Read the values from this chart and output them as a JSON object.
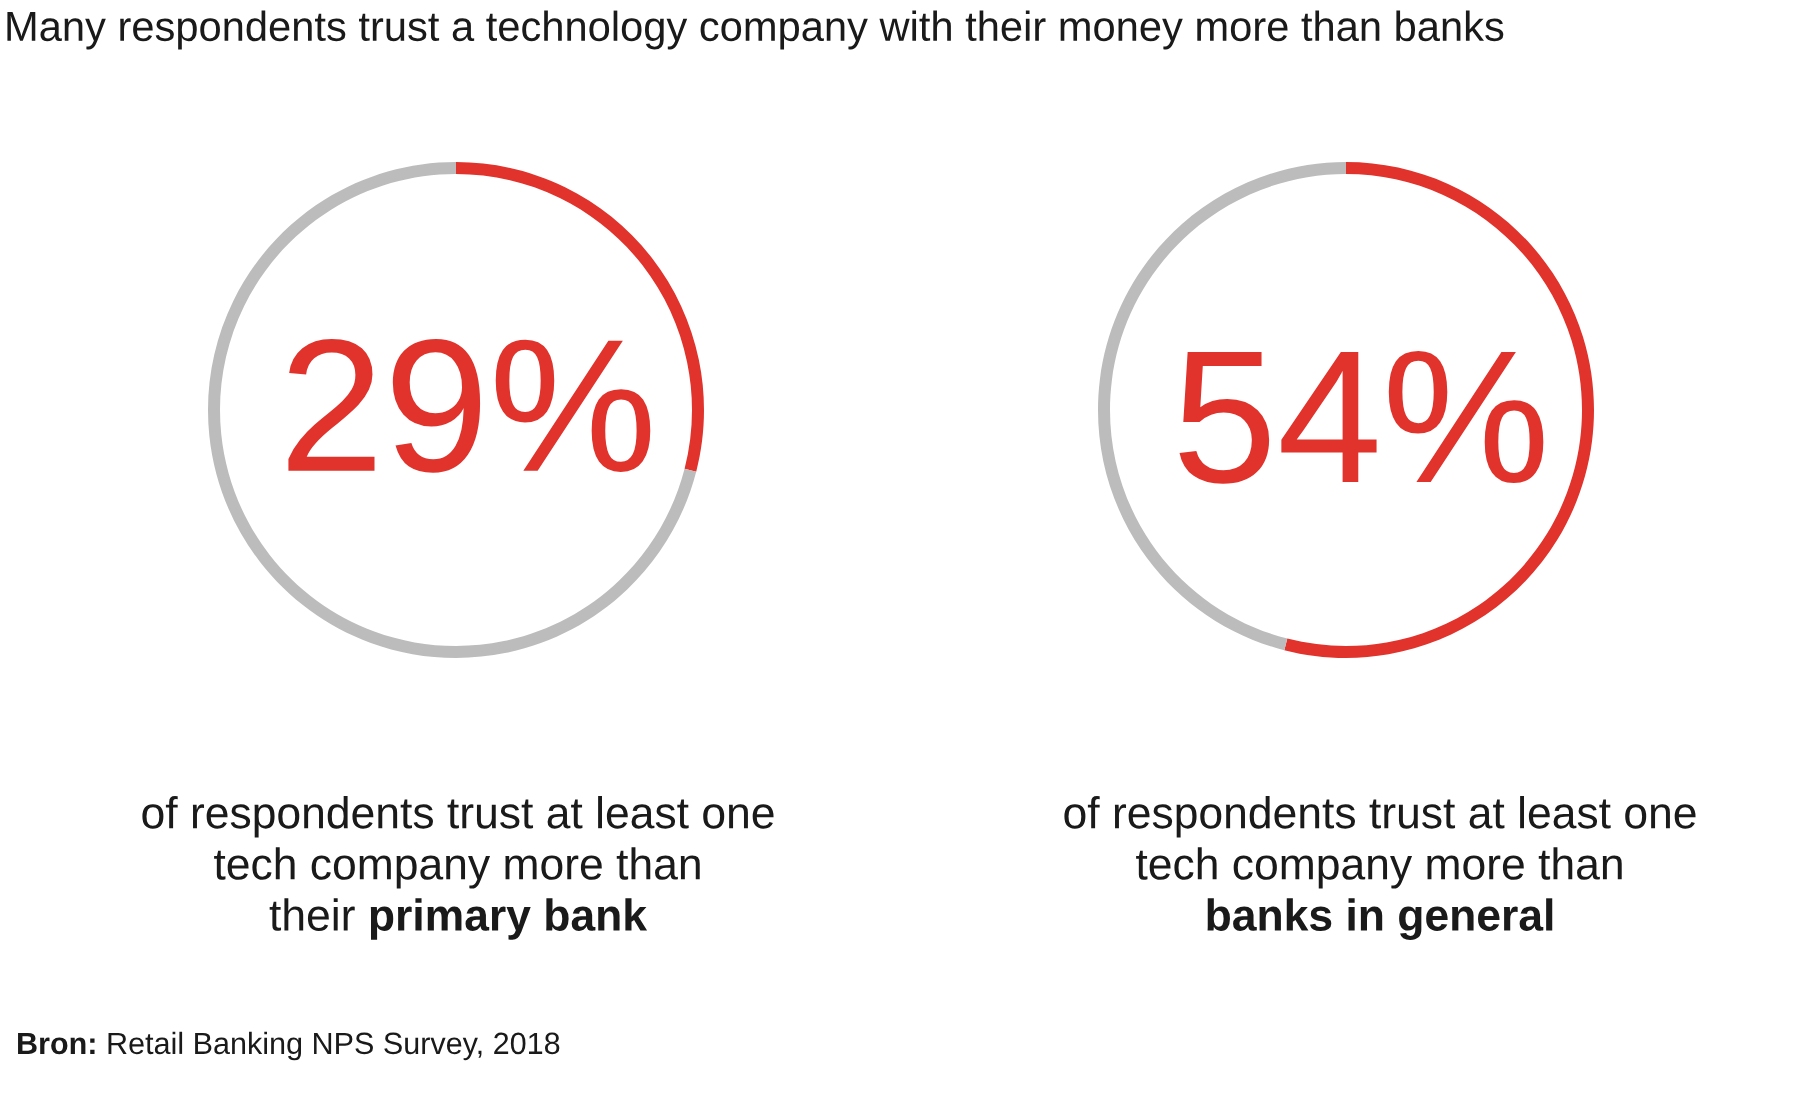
{
  "chart_data": [
    {
      "type": "donut",
      "title": "Many respondents trust a technology company with their money more than banks",
      "categories": [
        null,
        null
      ],
      "values": [
        29,
        71
      ],
      "colors": [
        "#e1322b",
        "#bcbcbc"
      ],
      "value_labels": [
        "29%",
        null
      ],
      "annotations": [
        "of respondents trust at least one\ntech company more than\ntheir",
        "primary bank",
        "Bron:",
        "Retail Banking NPS Survey, 2018"
      ]
    },
    {
      "type": "donut",
      "categories": [
        null,
        null
      ],
      "values": [
        54,
        46
      ],
      "colors": [
        "#e1322b",
        "#bcbcbc"
      ],
      "value_labels": [
        "54%",
        null
      ],
      "annotations": [
        "of respondents trust at least one\ntech company more than\n",
        "banks in general"
      ]
    }
  ]
}
